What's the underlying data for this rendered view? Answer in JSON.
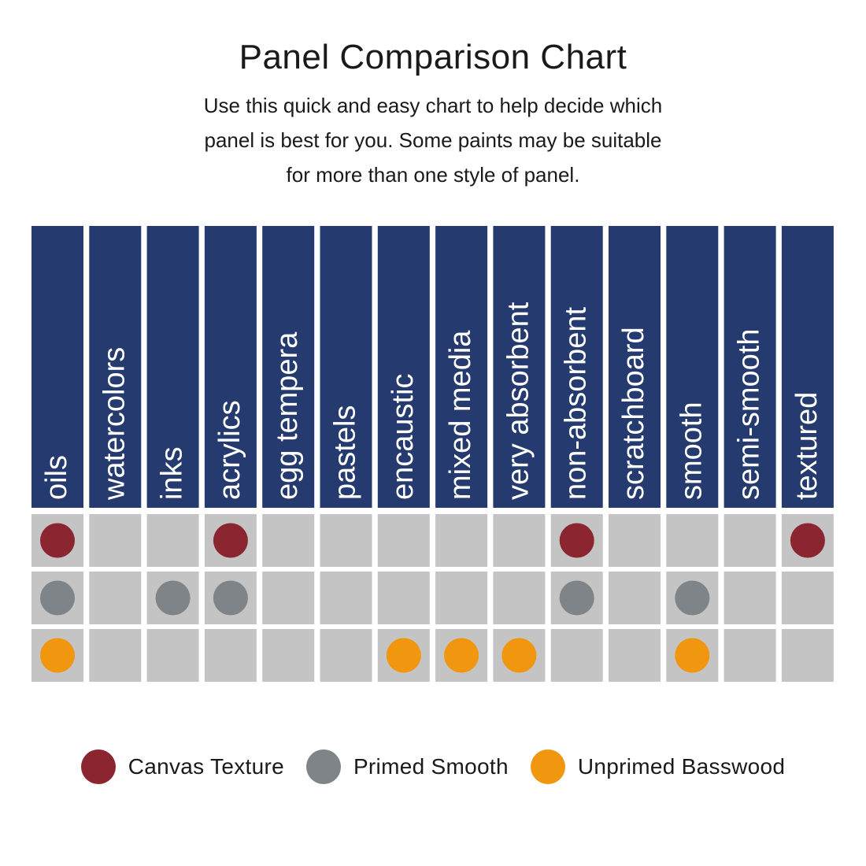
{
  "title": "Panel Comparison Chart",
  "subtitle_lines": [
    "Use this quick and easy chart to help decide which",
    "panel is best for you. Some paints may be suitable",
    "for more than one style of panel."
  ],
  "colors": {
    "header_bg": "#253a6e",
    "header_text": "#ffffff",
    "cell_bg": "#c4c4c4",
    "canvas_texture": "#8b2530",
    "primed_smooth": "#7e8487",
    "unprimed_basswood": "#f0960f"
  },
  "chart_data": {
    "type": "table",
    "columns": [
      "oils",
      "watercolors",
      "inks",
      "acrylics",
      "egg tempera",
      "pastels",
      "encaustic",
      "mixed media",
      "very absorbent",
      "non-absorbent",
      "scratchboard",
      "smooth",
      "semi-smooth",
      "textured"
    ],
    "series": [
      {
        "name": "Canvas Texture",
        "color_key": "canvas_texture",
        "values": [
          1,
          0,
          0,
          1,
          0,
          0,
          0,
          0,
          0,
          1,
          0,
          0,
          0,
          1
        ]
      },
      {
        "name": "Primed Smooth",
        "color_key": "primed_smooth",
        "values": [
          1,
          0,
          1,
          1,
          0,
          0,
          0,
          0,
          0,
          1,
          0,
          1,
          0,
          0
        ]
      },
      {
        "name": "Unprimed Basswood",
        "color_key": "unprimed_basswood",
        "values": [
          1,
          0,
          0,
          0,
          0,
          0,
          1,
          1,
          1,
          0,
          0,
          1,
          0,
          0
        ]
      }
    ]
  },
  "legend": [
    {
      "label": "Canvas Texture",
      "color_key": "canvas_texture"
    },
    {
      "label": "Primed Smooth",
      "color_key": "primed_smooth"
    },
    {
      "label": "Unprimed Basswood",
      "color_key": "unprimed_basswood"
    }
  ]
}
